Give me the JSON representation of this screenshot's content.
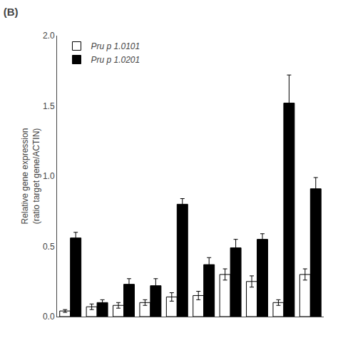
{
  "chart_data": {
    "type": "bar",
    "title": "(B)",
    "ylabel": "Relative gene expression\n(ratio target gene/ACTIN)",
    "categories": [
      null,
      null,
      null,
      null,
      null,
      null,
      null,
      null,
      null,
      null
    ],
    "series": [
      {
        "name": "Pru p 1.0101",
        "color": "#ffffff",
        "values": [
          0.04,
          0.07,
          0.08,
          0.1,
          0.14,
          0.15,
          0.3,
          0.25,
          0.1,
          0.3
        ],
        "errors": [
          0.01,
          0.02,
          0.02,
          0.02,
          0.03,
          0.03,
          0.04,
          0.04,
          0.02,
          0.04
        ]
      },
      {
        "name": "Pru p 1.0201",
        "color": "#000000",
        "values": [
          0.56,
          0.1,
          0.23,
          0.22,
          0.8,
          0.37,
          0.49,
          0.55,
          1.52,
          0.91
        ],
        "errors": [
          0.04,
          0.02,
          0.04,
          0.05,
          0.04,
          0.05,
          0.06,
          0.04,
          0.2,
          0.08
        ]
      }
    ],
    "ylim": [
      0,
      2.0
    ],
    "yticks": [
      0.0,
      0.5,
      1.0,
      1.5,
      2.0
    ],
    "grid": false,
    "legend": "upper left",
    "tick_labels": "y"
  }
}
